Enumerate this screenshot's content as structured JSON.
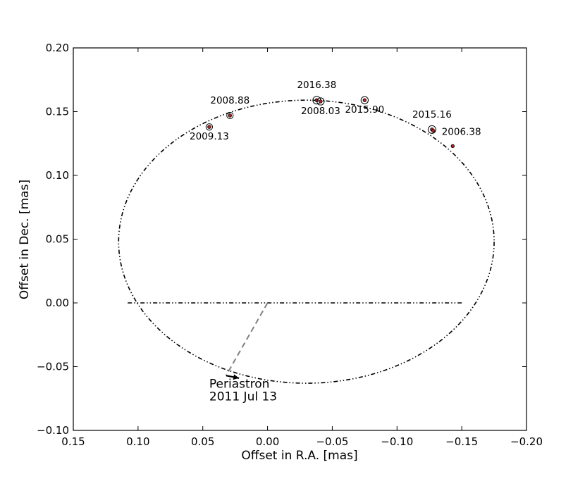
{
  "chart_data": {
    "type": "scatter",
    "title": "",
    "xlabel": "Offset in R.A. [mas]",
    "ylabel": "Offset in Dec. [mas]",
    "xlim": [
      0.15,
      -0.2
    ],
    "ylim": [
      -0.1,
      0.2
    ],
    "x_inverted": true,
    "grid": false,
    "xticks": [
      0.15,
      0.1,
      0.05,
      0.0,
      -0.05,
      -0.1,
      -0.15,
      -0.2
    ],
    "xtick_labels": [
      "0.15",
      "0.10",
      "0.05",
      "0.00",
      "−0.05",
      "−0.10",
      "−0.15",
      "−0.20"
    ],
    "yticks": [
      0.2,
      0.15,
      0.1,
      0.05,
      0.0,
      -0.05,
      -0.1
    ],
    "ytick_labels": [
      "0.20",
      "0.15",
      "0.10",
      "0.05",
      "0.00",
      "−0.05",
      "−0.10"
    ],
    "orbit": {
      "center": [
        -0.03,
        0.048
      ],
      "semi_axis_x": 0.145,
      "semi_axis_y": 0.111,
      "line_style": "dash-dot-dot",
      "color": "#000000"
    },
    "line_of_nodes": {
      "x": [
        0.108,
        -0.15
      ],
      "y": [
        0.0,
        0.0
      ]
    },
    "periastron_line": {
      "x": [
        0.0,
        0.032
      ],
      "y": [
        0.0,
        -0.057
      ]
    },
    "periastron_arrow": {
      "from": [
        0.032,
        -0.057
      ],
      "to": [
        0.022,
        -0.059
      ]
    },
    "annotation": {
      "line1": "Periastron",
      "line2": "2011 Jul 13",
      "x": 0.045,
      "y": -0.065
    },
    "points": [
      {
        "label": "2009.13",
        "x": 0.045,
        "y": 0.138,
        "circle": 0.0025,
        "label_pos": "below"
      },
      {
        "label": "2008.88",
        "x": 0.029,
        "y": 0.147,
        "circle": 0.0025,
        "label_pos": "above"
      },
      {
        "label": "2016.38",
        "x": -0.038,
        "y": 0.159,
        "circle": 0.003,
        "label_pos": "above"
      },
      {
        "label": "2008.03",
        "x": -0.041,
        "y": 0.158,
        "circle": 0.0028,
        "label_pos": "below"
      },
      {
        "label": "2015.90",
        "x": -0.075,
        "y": 0.159,
        "circle": 0.0028,
        "label_pos": "below"
      },
      {
        "label": "2015.16",
        "x": -0.127,
        "y": 0.136,
        "circle": 0.003,
        "label_pos": "above"
      },
      {
        "label": "2006.38",
        "x": -0.128,
        "y": 0.135,
        "circle": 0.0,
        "label_pos": "right"
      },
      {
        "label": "",
        "x": -0.143,
        "y": 0.123,
        "circle": 0.0,
        "label_pos": "none"
      }
    ],
    "point_color": "#b22222",
    "marker_edge_color": "#000000"
  }
}
